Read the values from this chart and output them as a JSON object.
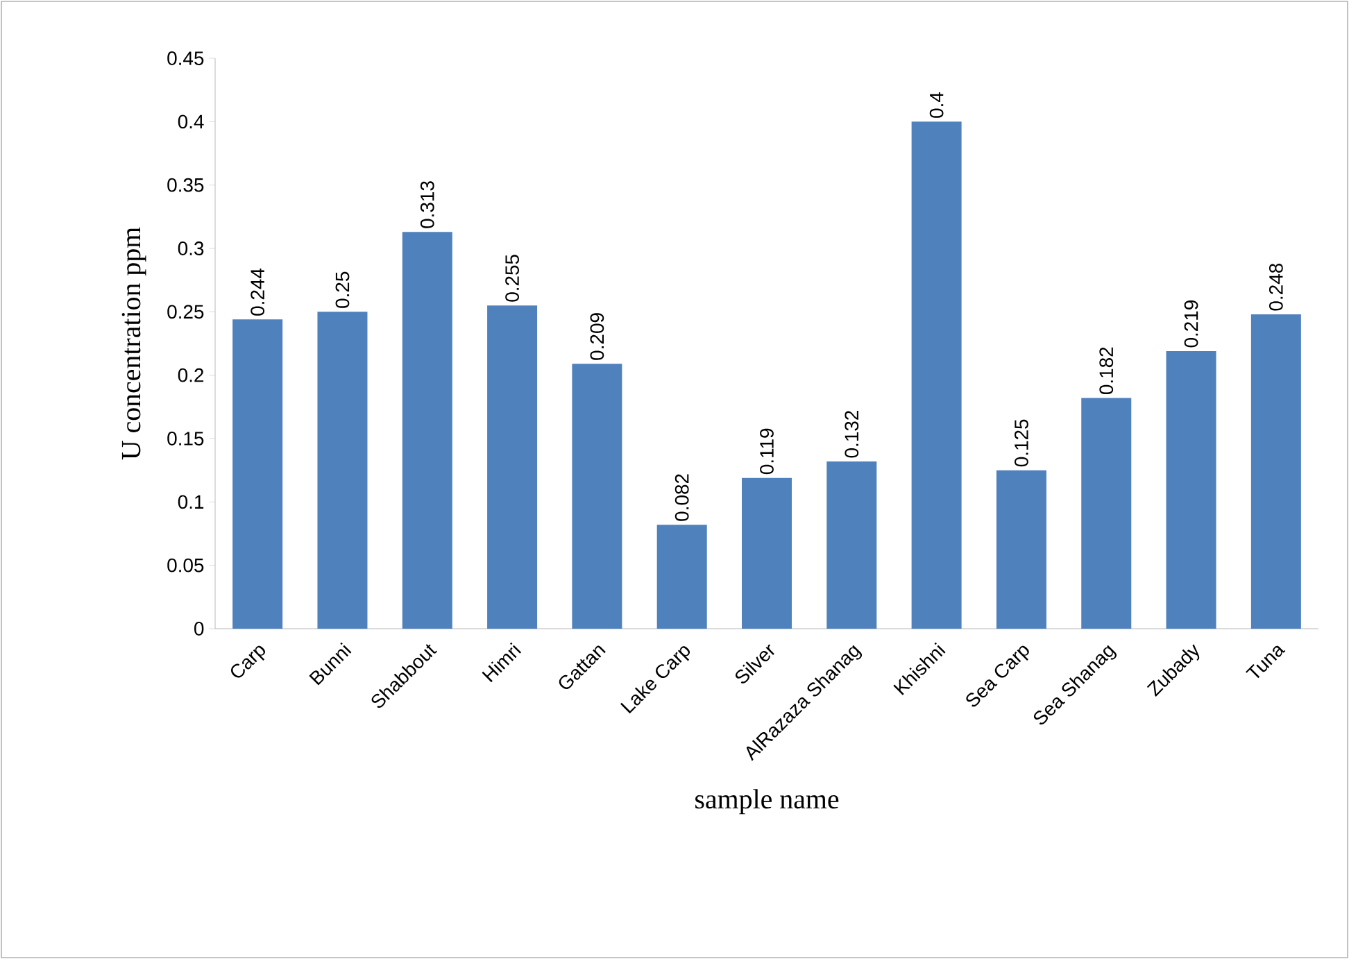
{
  "chart_data": {
    "type": "bar",
    "xlabel": "sample name",
    "ylabel": "U concentration ppm",
    "categories": [
      "Carp",
      "Bunni",
      "Shabbout",
      "Himri",
      "Gattan",
      "Lake Carp",
      "Silver",
      "AlRazaza Shanag",
      "Khishni",
      "Sea Carp",
      "Sea Shanag",
      "Zubady",
      "Tuna"
    ],
    "values": [
      0.244,
      0.25,
      0.313,
      0.255,
      0.209,
      0.082,
      0.119,
      0.132,
      0.4,
      0.125,
      0.182,
      0.219,
      0.248
    ],
    "color": "#4f81bd",
    "ylim": [
      0,
      0.45
    ],
    "yticks": [
      0,
      0.05,
      0.1,
      0.15,
      0.2,
      0.25,
      0.3,
      0.35,
      0.4,
      0.45
    ],
    "data_labels": true,
    "grid": false
  }
}
